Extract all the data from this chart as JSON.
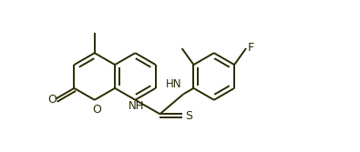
{
  "background_color": "#ffffff",
  "line_color": "#2a2a00",
  "text_color": "#2a2a00",
  "line_width": 1.4,
  "figsize": [
    3.95,
    1.67
  ],
  "dpi": 100,
  "xlim": [
    0,
    395
  ],
  "ylim": [
    0,
    167
  ]
}
